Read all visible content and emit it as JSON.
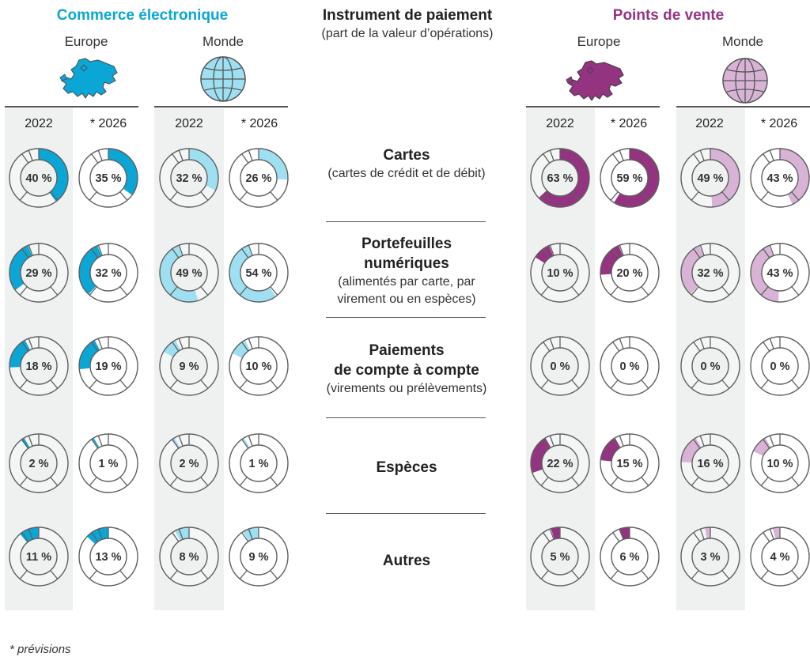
{
  "header": {
    "left_title": "Commerce électronique",
    "center_title": "Instrument de paiement",
    "center_subtitle": "(part de la valeur d’opérations)",
    "right_title": "Points de vente"
  },
  "regions": [
    "Europe",
    "Monde",
    "Europe",
    "Monde"
  ],
  "years": [
    "2022",
    "* 2026",
    "2022",
    "* 2026",
    "2022",
    "* 2026",
    "2022",
    "* 2026"
  ],
  "footnote": "* prévisions",
  "colors": {
    "ecommerce_dark": "#0aa6d6",
    "ecommerce_light": "#9ee0f2",
    "pos_dark": "#943380",
    "pos_light": "#d8b3d6",
    "ring_outline": "#606060",
    "column_shade": "#eff0f0"
  },
  "chart_data": {
    "type": "pie",
    "variant": "donut",
    "columns": [
      "Commerce électronique / Europe / 2022",
      "Commerce électronique / Europe / * 2026",
      "Commerce électronique / Monde / 2022",
      "Commerce électronique / Monde / * 2026",
      "Points de vente / Europe / 2022",
      "Points de vente / Europe / * 2026",
      "Points de vente / Monde / 2022",
      "Points de vente / Monde / * 2026"
    ],
    "rows": [
      {
        "label": "Cartes",
        "sublabel": "(cartes de crédit et de débit)",
        "values": [
          40,
          35,
          32,
          26,
          63,
          59,
          49,
          43
        ]
      },
      {
        "label": "Portefeuilles numériques",
        "label_lines": [
          "Portefeuilles",
          "numériques"
        ],
        "sublabel_lines": [
          "(alimentés par carte, par",
          "virement ou en espèces)"
        ],
        "values": [
          29,
          32,
          49,
          54,
          10,
          20,
          32,
          43
        ]
      },
      {
        "label": "Paiements de compte à compte",
        "label_lines": [
          "Paiements",
          "de compte à compte"
        ],
        "sublabel": "(virements ou prélèvements)",
        "values": [
          18,
          19,
          9,
          10,
          0,
          0,
          0,
          0
        ]
      },
      {
        "label": "Espèces",
        "values": [
          2,
          1,
          2,
          1,
          22,
          15,
          16,
          10
        ]
      },
      {
        "label": "Autres",
        "values": [
          11,
          13,
          8,
          9,
          5,
          6,
          3,
          4
        ]
      }
    ],
    "value_suffix": " %"
  }
}
